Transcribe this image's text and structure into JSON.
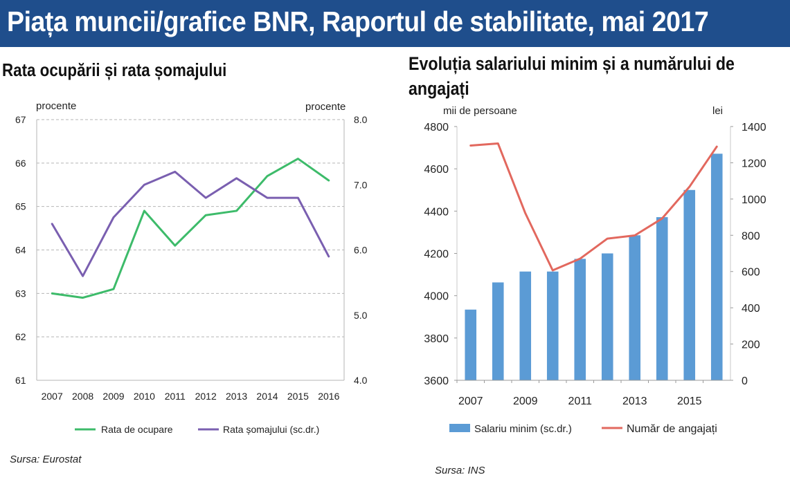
{
  "header": {
    "banner": "Piața muncii/grafice BNR, Raportul de stabilitate, mai 2017"
  },
  "left_panel": {
    "title": "Rata ocupării și rata șomajului",
    "source": "Sursa: Eurostat"
  },
  "right_panel": {
    "title": "Evoluția salariului minim și a numărului de angajați",
    "source": "Sursa: INS"
  },
  "colors": {
    "banner": "#1f4e8c",
    "green": "#3dbb6a",
    "purple": "#7a5fb0",
    "bar_blue": "#5b9bd5",
    "red": "#e2685e",
    "grid": "#b5b5b5"
  },
  "chart_data": [
    {
      "type": "line",
      "ylabel": "procente",
      "y2label": "procente",
      "categories": [
        "2007",
        "2008",
        "2009",
        "2010",
        "2011",
        "2012",
        "2013",
        "2014",
        "2015",
        "2016"
      ],
      "ylim": [
        61,
        67
      ],
      "y2lim": [
        4.0,
        8.0
      ],
      "yticks": [
        "61",
        "62",
        "63",
        "64",
        "65",
        "66",
        "67"
      ],
      "y2ticks": [
        "4.0",
        "5.0",
        "6.0",
        "7.0",
        "8.0"
      ],
      "grid": true,
      "legend_position": "bottom",
      "series": [
        {
          "name": "Rata de ocupare",
          "axis": "left",
          "color": "#3dbb6a",
          "values": [
            63.0,
            62.9,
            63.1,
            64.9,
            64.1,
            64.8,
            64.9,
            65.7,
            66.1,
            65.6
          ]
        },
        {
          "name": "Rata șomajului (sc.dr.)",
          "axis": "right",
          "color": "#7a5fb0",
          "values": [
            6.4,
            5.6,
            6.5,
            7.0,
            7.2,
            6.8,
            7.1,
            6.8,
            6.8,
            5.9
          ]
        }
      ]
    },
    {
      "type": "bar",
      "ylabel": "mii de persoane",
      "y2label": "lei",
      "categories": [
        "2007",
        "2008",
        "2009",
        "2010",
        "2011",
        "2012",
        "2013",
        "2014",
        "2015",
        "2016"
      ],
      "xtick_labels": [
        "2007",
        "2009",
        "2011",
        "2013",
        "2015"
      ],
      "ylim": [
        3600,
        4800
      ],
      "y2lim": [
        0,
        1400
      ],
      "yticks": [
        "3600",
        "3800",
        "4000",
        "4200",
        "4400",
        "4600",
        "4800"
      ],
      "y2ticks": [
        "0",
        "200",
        "400",
        "600",
        "800",
        "1000",
        "1200",
        "1400"
      ],
      "grid": false,
      "legend_position": "bottom",
      "series": [
        {
          "name": "Salariu minim (sc.dr.)",
          "type": "bar",
          "axis": "right",
          "color": "#5b9bd5",
          "values": [
            390,
            540,
            600,
            600,
            670,
            700,
            800,
            900,
            1050,
            1250
          ]
        },
        {
          "name": "Număr de angajați",
          "type": "line",
          "axis": "left",
          "color": "#e2685e",
          "values": [
            4710,
            4720,
            4390,
            4120,
            4175,
            4270,
            4285,
            4365,
            4515,
            4705
          ]
        }
      ]
    }
  ]
}
